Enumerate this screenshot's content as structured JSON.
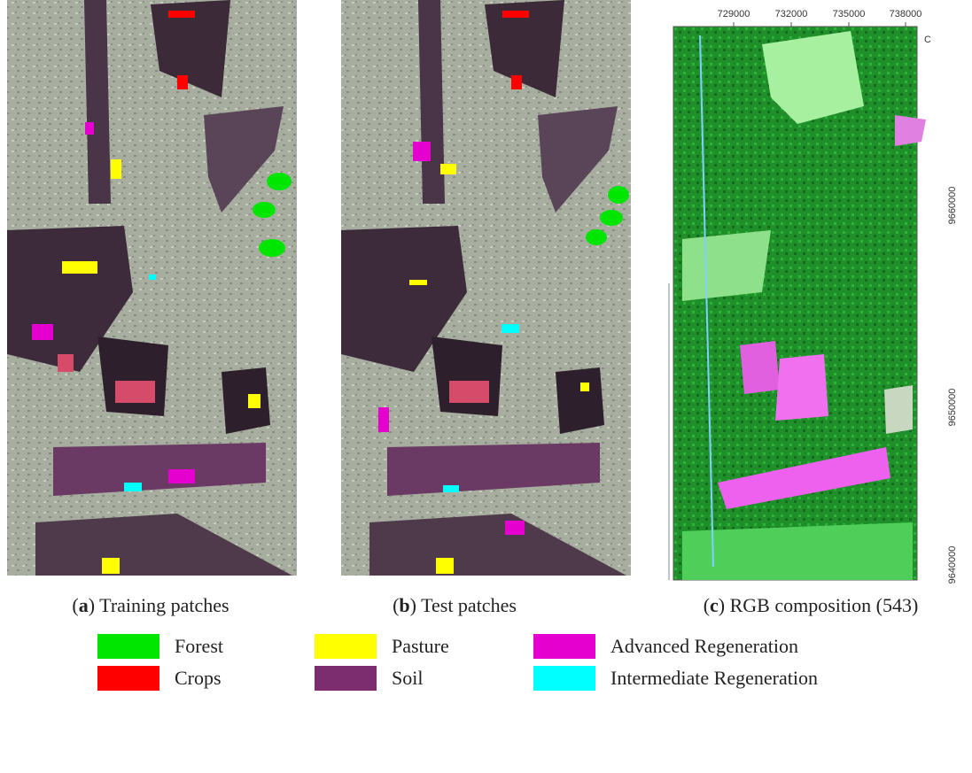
{
  "panels": [
    {
      "caption_parts": [
        "(",
        "a",
        ") Training patches"
      ]
    },
    {
      "caption_parts": [
        "(",
        "b",
        ") Test patches"
      ]
    },
    {
      "caption_parts": [
        "(",
        "c",
        ") RGB composition (543)"
      ]
    }
  ],
  "map_axes": {
    "corner_label": "C",
    "x_labels": [
      729000,
      732000,
      735000,
      738000
    ],
    "y_labels": [
      9660000,
      9650000,
      9640000
    ]
  },
  "legend": [
    {
      "name": "Forest",
      "color": "#00e600"
    },
    {
      "name": "Pasture",
      "color": "#ffff00"
    },
    {
      "name": "Advanced Regeneration",
      "color": "#e600d0"
    },
    {
      "name": "Crops",
      "color": "#ff0000"
    },
    {
      "name": "Soil",
      "color": "#7b2d6f"
    },
    {
      "name": "Intermediate Regeneration",
      "color": "#00ffff"
    }
  ]
}
